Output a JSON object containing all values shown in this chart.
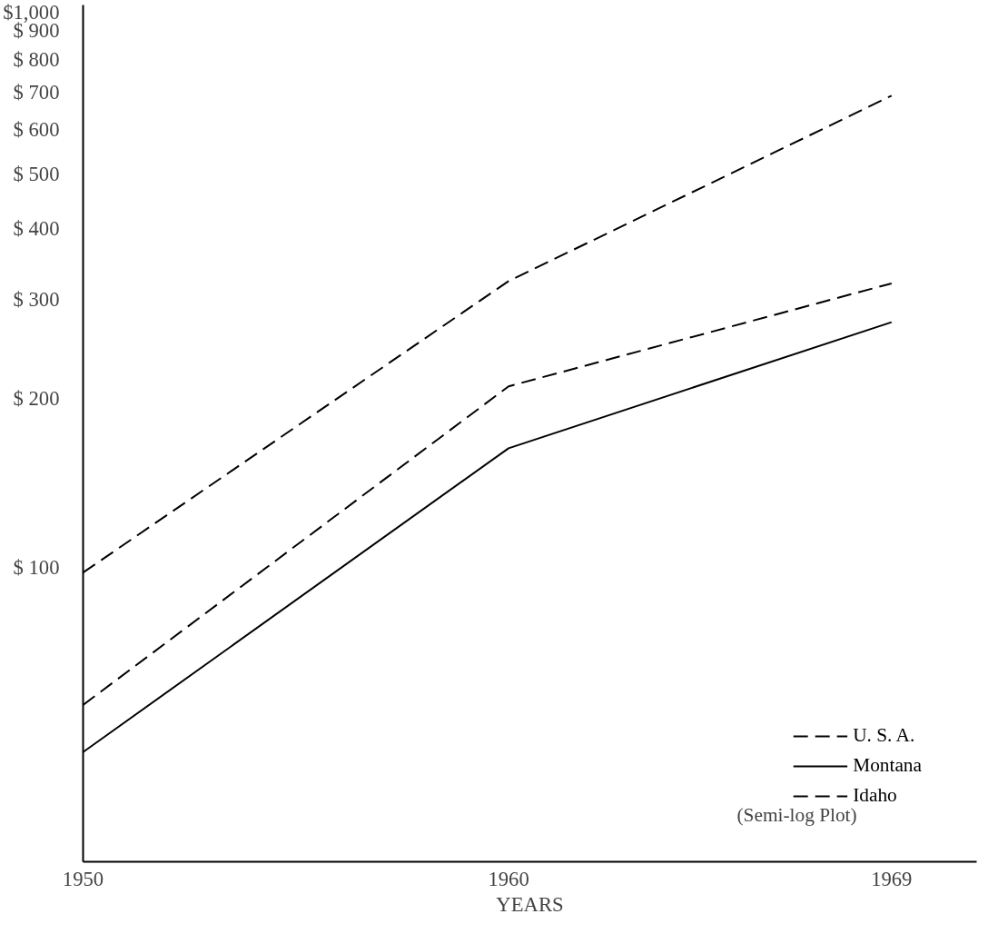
{
  "chart_data": {
    "type": "line",
    "xlabel": "YEARS",
    "x": [
      1950,
      1960,
      1969
    ],
    "series": [
      {
        "name": "U. S. A.",
        "color": "#000000",
        "values": [
          98,
          323,
          690
        ],
        "line_style": "dashed"
      },
      {
        "name": "Montana",
        "color": "#000000",
        "values": [
          47,
          163,
          273
        ],
        "line_style": "solid"
      },
      {
        "name": "Idaho",
        "color": "#000000",
        "values": [
          57,
          210,
          320
        ],
        "line_style": "dashed"
      }
    ],
    "log": "y",
    "xlim": [
      1950,
      1971
    ],
    "ylim": [
      30,
      1000
    ],
    "xticks": [
      1950,
      1960,
      1969
    ],
    "yticks": [
      {
        "value": 100,
        "label": "$ 100"
      },
      {
        "value": 200,
        "label": "$ 200"
      },
      {
        "value": 300,
        "label": "$ 300"
      },
      {
        "value": 400,
        "label": "$ 400"
      },
      {
        "value": 500,
        "label": "$ 500"
      },
      {
        "value": 600,
        "label": "$ 600"
      },
      {
        "value": 700,
        "label": "$ 700"
      },
      {
        "value": 800,
        "label": "$ 800"
      },
      {
        "value": 900,
        "label": "$ 900"
      },
      {
        "value": 1000,
        "label": "$1,000"
      }
    ],
    "grid": false,
    "legend": "bottom right",
    "marker": "none",
    "annotations": [
      "(Semi-log Plot)"
    ]
  }
}
